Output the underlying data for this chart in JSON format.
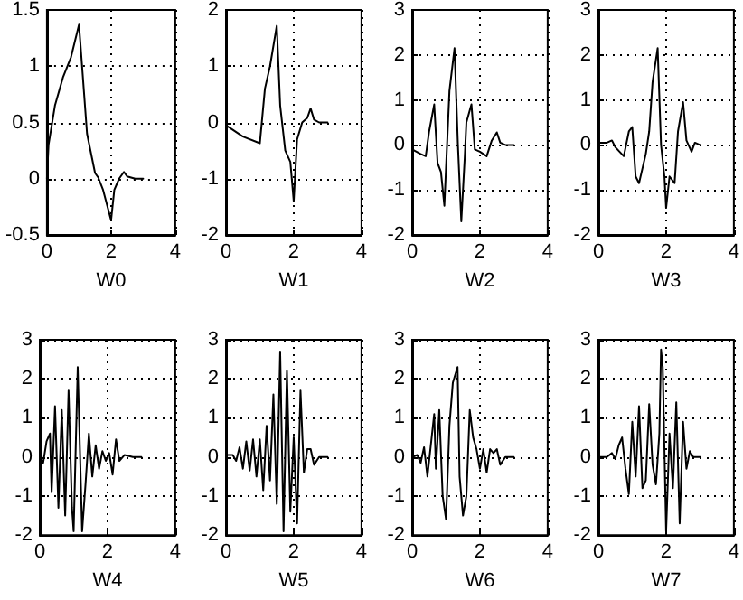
{
  "chart_data": [
    {
      "type": "line",
      "xlabel": "W0",
      "xlim": [
        0,
        4
      ],
      "xticks": [
        0,
        2,
        4
      ],
      "ylim": [
        -0.5,
        1.5
      ],
      "yticks": [
        -0.5,
        0,
        0.5,
        1,
        1.5
      ],
      "grid": true,
      "marker": "none",
      "line_style": "solid",
      "series": [
        {
          "color": "#000000",
          "x": [
            0,
            0.05,
            0.25,
            0.5,
            0.75,
            1.0,
            1.25,
            1.5,
            1.6,
            1.75,
            2.0,
            2.1,
            2.25,
            2.4,
            2.5,
            2.75,
            3
          ],
          "values": [
            0,
            0.3,
            0.65,
            0.9,
            1.08,
            1.37,
            0.4,
            0.05,
            0.01,
            -0.1,
            -0.37,
            -0.1,
            0.0,
            0.06,
            0.02,
            0,
            0
          ]
        }
      ]
    },
    {
      "type": "line",
      "xlabel": "W1",
      "xlim": [
        0,
        4
      ],
      "xticks": [
        0,
        2,
        4
      ],
      "ylim": [
        -2,
        2
      ],
      "yticks": [
        -2,
        -1,
        0,
        1,
        2
      ],
      "grid": true,
      "marker": "none",
      "line_style": "solid",
      "series": [
        {
          "color": "#000000",
          "x": [
            0,
            0.5,
            1.0,
            1.15,
            1.3,
            1.5,
            1.6,
            1.75,
            1.9,
            2.0,
            2.1,
            2.25,
            2.4,
            2.5,
            2.6,
            2.75,
            3
          ],
          "values": [
            -0.05,
            -0.25,
            -0.37,
            0.6,
            1.0,
            1.72,
            0.3,
            -0.5,
            -0.7,
            -1.4,
            -0.3,
            0.0,
            0.08,
            0.25,
            0.05,
            0,
            0
          ]
        }
      ]
    },
    {
      "type": "line",
      "xlabel": "W2",
      "xlim": [
        0,
        4
      ],
      "xticks": [
        0,
        2,
        4
      ],
      "ylim": [
        -2,
        3
      ],
      "yticks": [
        -2,
        -1,
        0,
        1,
        2,
        3
      ],
      "grid": true,
      "marker": "none",
      "line_style": "solid",
      "series": [
        {
          "color": "#000000",
          "x": [
            0,
            0.25,
            0.4,
            0.5,
            0.65,
            0.75,
            0.85,
            0.95,
            1.1,
            1.25,
            1.35,
            1.45,
            1.55,
            1.6,
            1.75,
            1.85,
            2.0,
            2.2,
            2.35,
            2.5,
            2.6,
            2.75,
            3
          ],
          "values": [
            -0.1,
            -0.2,
            -0.25,
            0.3,
            0.9,
            -0.4,
            -0.6,
            -1.35,
            1.2,
            2.15,
            0,
            -1.7,
            -0.3,
            0.5,
            0.9,
            -0.1,
            -0.15,
            -0.25,
            0.1,
            0.28,
            0.05,
            0,
            0
          ]
        }
      ]
    },
    {
      "type": "line",
      "xlabel": "W3",
      "xlim": [
        0,
        4
      ],
      "xticks": [
        0,
        2,
        4
      ],
      "ylim": [
        -2,
        3
      ],
      "yticks": [
        -2,
        -1,
        0,
        1,
        2,
        3
      ],
      "grid": true,
      "marker": "none",
      "line_style": "solid",
      "series": [
        {
          "color": "#000000",
          "x": [
            0,
            0.25,
            0.4,
            0.5,
            0.75,
            0.9,
            1.0,
            1.1,
            1.2,
            1.4,
            1.5,
            1.6,
            1.75,
            1.85,
            1.95,
            2.0,
            2.1,
            2.25,
            2.35,
            2.5,
            2.6,
            2.75,
            2.85,
            3
          ],
          "values": [
            0.05,
            0.05,
            0.1,
            -0.05,
            -0.25,
            0.3,
            0.4,
            -0.7,
            -0.85,
            -0.2,
            0.3,
            1.4,
            2.15,
            0,
            -0.7,
            -1.4,
            -0.7,
            -0.85,
            0.3,
            0.95,
            0.1,
            -0.15,
            0.05,
            0
          ]
        }
      ]
    },
    {
      "type": "line",
      "xlabel": "W4",
      "xlim": [
        0,
        4
      ],
      "xticks": [
        0,
        2,
        4
      ],
      "ylim": [
        -2,
        3
      ],
      "yticks": [
        -2,
        -1,
        0,
        1,
        2,
        3
      ],
      "grid": true,
      "marker": "none",
      "line_style": "solid",
      "series": [
        {
          "color": "#000000",
          "x": [
            0,
            0.1,
            0.2,
            0.3,
            0.35,
            0.45,
            0.55,
            0.65,
            0.75,
            0.85,
            0.95,
            1.0,
            1.12,
            1.25,
            1.35,
            1.45,
            1.55,
            1.65,
            1.75,
            1.85,
            1.95,
            2.05,
            2.15,
            2.25,
            2.35,
            2.5,
            2.75,
            3
          ],
          "values": [
            0,
            -0.15,
            0.4,
            0.6,
            -0.9,
            1.3,
            -1.3,
            1.2,
            -1.5,
            1.7,
            -1.3,
            -1.9,
            2.3,
            -1.9,
            -0.7,
            0.6,
            -0.5,
            0.3,
            -0.3,
            0.15,
            -0.1,
            0.1,
            -0.45,
            0.45,
            -0.1,
            0.05,
            0,
            0
          ]
        }
      ]
    },
    {
      "type": "line",
      "xlabel": "W5",
      "xlim": [
        0,
        4
      ],
      "xticks": [
        0,
        2,
        4
      ],
      "ylim": [
        -2,
        3
      ],
      "yticks": [
        -2,
        -1,
        0,
        1,
        2,
        3
      ],
      "grid": true,
      "marker": "none",
      "line_style": "solid",
      "series": [
        {
          "color": "#000000",
          "x": [
            0,
            0.2,
            0.3,
            0.4,
            0.5,
            0.6,
            0.7,
            0.8,
            0.9,
            1.0,
            1.1,
            1.2,
            1.3,
            1.4,
            1.5,
            1.6,
            1.7,
            1.8,
            1.9,
            2.0,
            2.1,
            2.2,
            2.3,
            2.4,
            2.5,
            2.6,
            2.75,
            3
          ],
          "values": [
            0.05,
            0.05,
            -0.1,
            0.25,
            -0.3,
            0.4,
            -0.35,
            0.45,
            -0.5,
            0.45,
            -0.85,
            0.8,
            -0.6,
            1.6,
            -1.2,
            2.7,
            -1.9,
            2.2,
            -1.4,
            0.5,
            -1.7,
            1.7,
            -0.4,
            0.2,
            0.2,
            -0.2,
            0,
            0
          ]
        }
      ]
    },
    {
      "type": "line",
      "xlabel": "W6",
      "xlim": [
        0,
        4
      ],
      "xticks": [
        0,
        2,
        4
      ],
      "ylim": [
        -2,
        3
      ],
      "yticks": [
        -2,
        -1,
        0,
        1,
        2,
        3
      ],
      "grid": true,
      "marker": "none",
      "line_style": "solid",
      "series": [
        {
          "color": "#000000",
          "x": [
            0,
            0.15,
            0.25,
            0.35,
            0.45,
            0.55,
            0.65,
            0.7,
            0.8,
            0.9,
            1.0,
            1.1,
            1.2,
            1.34,
            1.4,
            1.5,
            1.6,
            1.7,
            1.8,
            1.9,
            2.0,
            2.1,
            2.2,
            2.3,
            2.4,
            2.5,
            2.6,
            2.75,
            3
          ],
          "values": [
            0,
            0.05,
            -0.15,
            0.25,
            -0.5,
            0.3,
            1.1,
            -0.3,
            1.2,
            -1.0,
            -1.6,
            0.8,
            1.9,
            2.3,
            -0.5,
            -1.5,
            -1.0,
            1.2,
            0.5,
            0.2,
            -0.3,
            0.2,
            -0.4,
            0.2,
            0.1,
            0.2,
            -0.2,
            0,
            0
          ]
        }
      ]
    },
    {
      "type": "line",
      "xlabel": "W7",
      "xlim": [
        0,
        4
      ],
      "xticks": [
        0,
        2,
        4
      ],
      "ylim": [
        -2,
        3
      ],
      "yticks": [
        -2,
        -1,
        0,
        1,
        2,
        3
      ],
      "grid": true,
      "marker": "none",
      "line_style": "solid",
      "series": [
        {
          "color": "#000000",
          "x": [
            0,
            0.25,
            0.4,
            0.5,
            0.6,
            0.7,
            0.8,
            0.9,
            1.0,
            1.1,
            1.2,
            1.3,
            1.4,
            1.5,
            1.6,
            1.7,
            1.8,
            1.85,
            1.9,
            2.0,
            2.1,
            2.2,
            2.3,
            2.4,
            2.5,
            2.6,
            2.7,
            2.8,
            3
          ],
          "values": [
            0,
            0,
            0.1,
            -0.05,
            0.3,
            0.5,
            -0.3,
            -0.95,
            0.9,
            -0.5,
            1.3,
            -0.8,
            -0.6,
            1.35,
            -0.2,
            -0.7,
            0.6,
            2.75,
            2.3,
            -1.9,
            0.6,
            -0.8,
            1.4,
            -1.7,
            0.9,
            -0.3,
            0.15,
            0,
            0
          ]
        }
      ]
    }
  ]
}
